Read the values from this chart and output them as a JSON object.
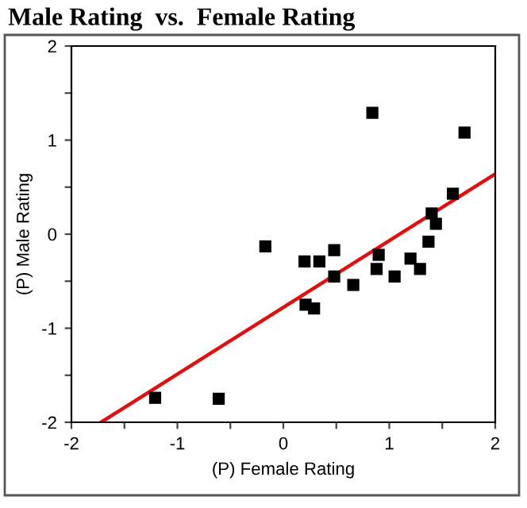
{
  "chart_data": {
    "type": "scatter",
    "title": "Male Rating  vs.  Female Rating",
    "xlabel": "(P) Female Rating",
    "ylabel": "(P) Male Rating",
    "xlim": [
      -2,
      2
    ],
    "ylim": [
      -2,
      2
    ],
    "xticks": [
      -2,
      {
        "value": -1.5,
        "label": null
      },
      -1,
      {
        "value": -0.5,
        "label": null
      },
      0,
      {
        "value": 0.5,
        "label": null
      },
      1,
      {
        "value": 1.5,
        "label": null
      },
      2
    ],
    "yticks": [
      -2,
      {
        "value": -1.5,
        "label": null
      },
      -1,
      {
        "value": -0.5,
        "label": null
      },
      0,
      {
        "value": 0.5,
        "label": null
      },
      1,
      {
        "value": 1.5,
        "label": null
      },
      2
    ],
    "grid": false,
    "legend": false,
    "series": [
      {
        "color": "#000000",
        "marker": "square",
        "x": [
          -1.21,
          -0.61,
          -0.17,
          0.2,
          0.21,
          0.29,
          0.34,
          0.48,
          0.48,
          0.66,
          0.84,
          0.88,
          0.9,
          1.05,
          1.2,
          1.29,
          1.37,
          1.4,
          1.44,
          1.6,
          1.71
        ],
        "values": [
          -1.74,
          -1.75,
          -0.13,
          -0.29,
          -0.75,
          -0.79,
          -0.29,
          -0.17,
          -0.45,
          -0.54,
          1.29,
          -0.37,
          -0.22,
          -0.45,
          -0.26,
          -0.37,
          -0.08,
          0.22,
          0.11,
          0.43,
          1.08
        ]
      },
      {
        "type": "line",
        "color": "#e01010",
        "marker": "none",
        "line_style": "solid",
        "x": [
          -1.72,
          2
        ],
        "values": [
          -2,
          0.64
        ]
      }
    ]
  }
}
